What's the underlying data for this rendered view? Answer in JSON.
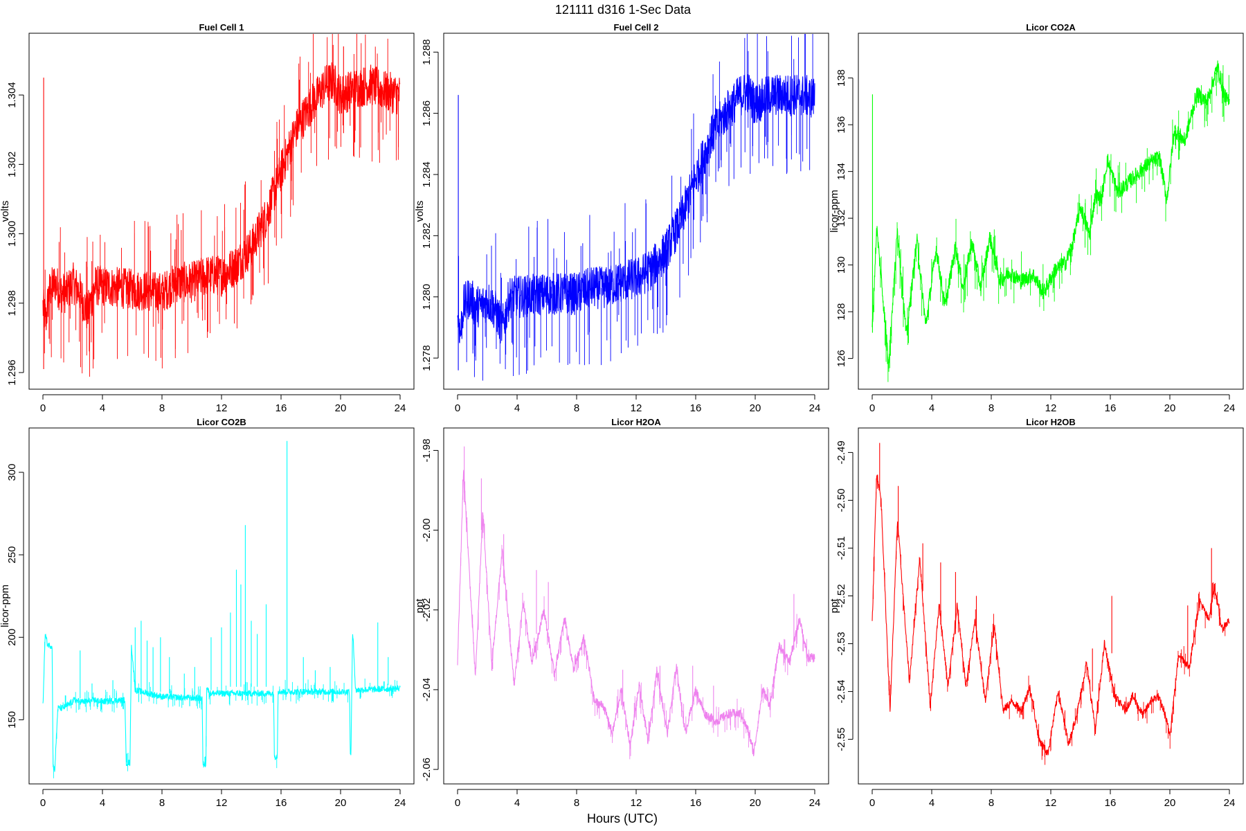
{
  "figure_title": "121111    d316    1-Sec Data",
  "x_axis_label": "Hours (UTC)",
  "chart_data": [
    {
      "type": "line",
      "title": "Fuel Cell 1",
      "ylabel": "volts",
      "color": "#ff0000",
      "xlim": [
        0,
        24
      ],
      "xticks": [
        0,
        4,
        8,
        12,
        16,
        20,
        24
      ],
      "ylim": [
        1.2958,
        1.3055
      ],
      "yticks": [
        1.296,
        1.298,
        1.3,
        1.302,
        1.304
      ],
      "ytick_labels": [
        "1.296",
        "1.298",
        "1.300",
        "1.302",
        "1.304"
      ],
      "baseline": {
        "x": [
          0,
          0.2,
          0.4,
          0.8,
          1.2,
          1.6,
          2.0,
          2.5,
          3.0,
          3.5,
          4,
          6,
          8,
          9,
          10,
          11,
          12,
          13,
          14,
          15,
          16,
          17,
          18,
          19,
          19.5,
          20,
          21,
          22,
          23,
          24
        ],
        "y": [
          1.2979,
          1.2975,
          1.2983,
          1.2986,
          1.2983,
          1.2983,
          1.2986,
          1.2983,
          1.2977,
          1.2985,
          1.2985,
          1.2984,
          1.2983,
          1.2986,
          1.2986,
          1.2988,
          1.2988,
          1.2991,
          1.2996,
          1.3005,
          1.3018,
          1.303,
          1.3037,
          1.3043,
          1.3044,
          1.304,
          1.3042,
          1.3043,
          1.3041,
          1.304
        ]
      },
      "band": 0.0006,
      "spikes": [
        {
          "x": 0.05,
          "y": [
            1.2961,
            1.3045
          ]
        },
        {
          "x": 20.2,
          "y": [
            1.3029,
            1.3054
          ]
        }
      ]
    },
    {
      "type": "line",
      "title": "Fuel Cell 2",
      "ylabel": "volts",
      "color": "#0000ff",
      "xlim": [
        0,
        24
      ],
      "xticks": [
        0,
        4,
        8,
        12,
        16,
        20,
        24
      ],
      "ylim": [
        1.2773,
        1.2883
      ],
      "yticks": [
        1.278,
        1.28,
        1.282,
        1.284,
        1.286,
        1.288
      ],
      "ytick_labels": [
        "1.278",
        "1.280",
        "1.282",
        "1.284",
        "1.286",
        "1.288"
      ],
      "baseline": {
        "x": [
          0,
          0.2,
          0.4,
          0.8,
          1.2,
          1.6,
          2.0,
          2.5,
          3.0,
          3.5,
          4,
          6,
          8,
          9,
          10,
          11,
          12,
          13,
          14,
          15,
          16,
          17,
          18,
          19,
          19.5,
          20,
          21,
          22,
          23,
          24
        ],
        "y": [
          1.2795,
          1.2788,
          1.2797,
          1.28,
          1.2797,
          1.2797,
          1.2799,
          1.2796,
          1.279,
          1.28,
          1.28,
          1.2801,
          1.2801,
          1.2803,
          1.2803,
          1.2805,
          1.2806,
          1.2809,
          1.2815,
          1.2825,
          1.2839,
          1.2852,
          1.286,
          1.2866,
          1.2867,
          1.2863,
          1.2866,
          1.2866,
          1.2866,
          1.2865
        ]
      },
      "band": 0.0007,
      "spikes": [
        {
          "x": 0.05,
          "y": [
            1.2776,
            1.2866
          ]
        }
      ]
    },
    {
      "type": "line",
      "title": "Licor CO2A",
      "ylabel": "licor-ppm",
      "color": "#00ff00",
      "xlim": [
        0,
        24
      ],
      "xticks": [
        0,
        4,
        8,
        12,
        16,
        20,
        24
      ],
      "ylim": [
        125.1,
        139.5
      ],
      "yticks": [
        126,
        128,
        130,
        132,
        134,
        136,
        138
      ],
      "ytick_labels": [
        "126",
        "128",
        "130",
        "132",
        "134",
        "136",
        "138"
      ],
      "baseline": {
        "x": [
          0,
          0.3,
          0.6,
          1.1,
          1.7,
          2.3,
          3.0,
          3.6,
          4.3,
          4.9,
          5.6,
          6.1,
          6.7,
          7.3,
          7.9,
          8.6,
          9.2,
          10.0,
          10.8,
          11.5,
          12.3,
          13.0,
          13.5,
          14.0,
          14.6,
          15.0,
          15.4,
          15.8,
          16.5,
          17.5,
          18.5,
          19.3,
          19.8,
          20.3,
          21.0,
          21.8,
          22.5,
          23.2,
          23.7,
          24.0
        ],
        "y": [
          127.2,
          131.6,
          129.5,
          125.8,
          131.5,
          126.9,
          131.1,
          127.4,
          130.7,
          128.2,
          130.8,
          129.0,
          131.0,
          129.0,
          131.2,
          129.3,
          129.7,
          129.3,
          129.6,
          128.8,
          129.8,
          130.1,
          131.0,
          132.5,
          131.3,
          133.0,
          132.8,
          134.5,
          133.1,
          133.7,
          134.3,
          134.6,
          132.8,
          135.8,
          135.3,
          137.3,
          137.0,
          138.5,
          137.2,
          136.9
        ]
      },
      "band": 0.35,
      "spikes": [
        {
          "x": 0.02,
          "y": [
            127.1,
            137.3
          ]
        }
      ]
    },
    {
      "type": "line",
      "title": "Licor CO2B",
      "ylabel": "licor-ppm",
      "color": "#00ffff",
      "xlim": [
        0,
        24
      ],
      "xticks": [
        0,
        4,
        8,
        12,
        16,
        20,
        24
      ],
      "ylim": [
        117,
        321
      ],
      "yticks": [
        150,
        200,
        250,
        300
      ],
      "ytick_labels": [
        "150",
        "200",
        "250",
        "300"
      ],
      "baseline": {
        "x": [
          0,
          0.15,
          0.3,
          0.45,
          0.62,
          0.68,
          0.8,
          1.0,
          1.3,
          1.7,
          2.1,
          2.5,
          3.0,
          3.5,
          4.0,
          5.5,
          5.6,
          5.72,
          5.85,
          5.95,
          6.2,
          8,
          10.7,
          10.75,
          10.8,
          10.95,
          11.0,
          11.2,
          15.5,
          15.55,
          15.6,
          15.75,
          15.8,
          15.9,
          20.6,
          20.65,
          20.7,
          20.8,
          20.85,
          21,
          24
        ],
        "y": [
          158,
          202,
          196,
          195,
          195,
          122,
          120,
          157,
          157,
          159,
          162,
          161,
          161,
          162,
          161,
          162,
          124,
          124,
          124,
          195,
          168,
          164,
          163,
          123,
          123,
          123,
          170,
          166,
          166,
          128,
          128,
          128,
          168,
          167,
          167,
          130,
          130,
          200,
          200,
          168,
          169
        ]
      },
      "band": 2,
      "spikes": [
        {
          "x": 2.5,
          "y": [
            163,
            192
          ]
        },
        {
          "x": 3.3,
          "y": [
            163,
            172
          ]
        },
        {
          "x": 4.7,
          "y": [
            163,
            174
          ]
        },
        {
          "x": 6.2,
          "y": [
            167,
            206
          ]
        },
        {
          "x": 6.6,
          "y": [
            168,
            210
          ]
        },
        {
          "x": 7.0,
          "y": [
            167,
            198
          ]
        },
        {
          "x": 7.4,
          "y": [
            167,
            194
          ]
        },
        {
          "x": 7.9,
          "y": [
            167,
            200
          ]
        },
        {
          "x": 8.5,
          "y": [
            166,
            188
          ]
        },
        {
          "x": 9.5,
          "y": [
            165,
            178
          ]
        },
        {
          "x": 10.2,
          "y": [
            165,
            182
          ]
        },
        {
          "x": 11.3,
          "y": [
            168,
            200
          ]
        },
        {
          "x": 12.0,
          "y": [
            168,
            206
          ]
        },
        {
          "x": 12.6,
          "y": [
            170,
            215
          ]
        },
        {
          "x": 13.0,
          "y": [
            170,
            241
          ]
        },
        {
          "x": 13.3,
          "y": [
            170,
            232
          ]
        },
        {
          "x": 13.6,
          "y": [
            168,
            268
          ]
        },
        {
          "x": 14.0,
          "y": [
            170,
            210
          ]
        },
        {
          "x": 14.4,
          "y": [
            170,
            202
          ]
        },
        {
          "x": 15.0,
          "y": [
            170,
            220
          ]
        },
        {
          "x": 16.4,
          "y": [
            168,
            319
          ]
        },
        {
          "x": 17.5,
          "y": [
            167,
            188
          ]
        },
        {
          "x": 18.3,
          "y": [
            167,
            180
          ]
        },
        {
          "x": 19.3,
          "y": [
            166,
            182
          ]
        },
        {
          "x": 22.5,
          "y": [
            170,
            209
          ]
        },
        {
          "x": 23.2,
          "y": [
            171,
            188
          ]
        }
      ]
    },
    {
      "type": "line",
      "title": "Licor H2OA",
      "ylabel": "ppt",
      "color": "#ee82ee",
      "xlim": [
        0,
        24
      ],
      "xticks": [
        0,
        4,
        8,
        12,
        16,
        20,
        24
      ],
      "ylim": [
        -2.0612,
        -1.9768
      ],
      "yticks": [
        -2.06,
        -2.04,
        -2.02,
        -2.0,
        -1.98
      ],
      "ytick_labels": [
        "-2.06",
        "-2.04",
        "-2.02",
        "-2.00",
        "-1.98"
      ],
      "baseline": {
        "x": [
          0,
          0.4,
          1.2,
          1.7,
          2.3,
          3.0,
          3.8,
          4.4,
          5.0,
          5.8,
          6.5,
          7.2,
          7.8,
          8.5,
          9.2,
          9.8,
          10.4,
          11.0,
          11.6,
          12.2,
          12.8,
          13.4,
          14.1,
          14.7,
          15.3,
          16.0,
          16.6,
          17.4,
          18.2,
          19.0,
          19.5,
          19.9,
          20.5,
          21.0,
          21.6,
          22.3,
          23.0,
          23.5,
          24.0
        ],
        "y": [
          -2.033,
          -1.985,
          -2.037,
          -1.995,
          -2.034,
          -2.005,
          -2.039,
          -2.018,
          -2.033,
          -2.02,
          -2.036,
          -2.022,
          -2.035,
          -2.027,
          -2.043,
          -2.044,
          -2.051,
          -2.04,
          -2.054,
          -2.039,
          -2.053,
          -2.035,
          -2.051,
          -2.034,
          -2.051,
          -2.04,
          -2.046,
          -2.048,
          -2.046,
          -2.046,
          -2.05,
          -2.056,
          -2.04,
          -2.044,
          -2.029,
          -2.033,
          -2.022,
          -2.032,
          -2.032
        ]
      },
      "band": 0.0012,
      "spikes": [
        {
          "x": 0.45,
          "y": [
            -1.993,
            -1.979
          ]
        },
        {
          "x": 1.6,
          "y": [
            -2.0,
            -1.987
          ]
        },
        {
          "x": 3.1,
          "y": [
            -2.012,
            -2.001
          ]
        },
        {
          "x": 5.3,
          "y": [
            -2.026,
            -2.01
          ]
        },
        {
          "x": 6.1,
          "y": [
            -2.025,
            -2.013
          ]
        },
        {
          "x": 11.1,
          "y": [
            -2.045,
            -2.035
          ]
        },
        {
          "x": 13.6,
          "y": [
            -2.043,
            -2.034
          ]
        },
        {
          "x": 15.8,
          "y": [
            -2.044,
            -2.034
          ]
        },
        {
          "x": 17.2,
          "y": [
            -2.049,
            -2.039
          ]
        },
        {
          "x": 22.6,
          "y": [
            -2.03,
            -2.016
          ]
        }
      ]
    },
    {
      "type": "line",
      "title": "Licor H2OB",
      "ylabel": "ppt",
      "color": "#ff0000",
      "xlim": [
        0,
        24
      ],
      "xticks": [
        0,
        4,
        8,
        12,
        16,
        20,
        24
      ],
      "ylim": [
        -2.5573,
        -2.4869
      ],
      "yticks": [
        -2.55,
        -2.54,
        -2.53,
        -2.52,
        -2.51,
        -2.5,
        -2.49
      ],
      "ytick_labels": [
        "-2.55",
        "-2.54",
        "-2.53",
        "-2.52",
        "-2.51",
        "-2.50",
        "-2.49"
      ],
      "baseline": {
        "x": [
          0,
          0.3,
          0.6,
          1.2,
          1.7,
          2.5,
          3.2,
          3.9,
          4.5,
          5.1,
          5.7,
          6.3,
          6.9,
          7.6,
          8.2,
          8.8,
          9.4,
          10.0,
          10.6,
          11.2,
          11.8,
          12.5,
          13.2,
          13.8,
          14.4,
          15.0,
          15.6,
          16.3,
          17.0,
          17.5,
          18.2,
          18.7,
          19.2,
          19.6,
          20.0,
          20.6,
          21.3,
          22.0,
          22.6,
          23.0,
          23.5,
          24.0
        ],
        "y": [
          -2.526,
          -2.494,
          -2.5,
          -2.544,
          -2.504,
          -2.538,
          -2.512,
          -2.543,
          -2.522,
          -2.539,
          -2.522,
          -2.539,
          -2.525,
          -2.542,
          -2.526,
          -2.544,
          -2.542,
          -2.544,
          -2.539,
          -2.55,
          -2.553,
          -2.54,
          -2.551,
          -2.544,
          -2.534,
          -2.548,
          -2.53,
          -2.541,
          -2.544,
          -2.541,
          -2.545,
          -2.542,
          -2.541,
          -2.544,
          -2.549,
          -2.532,
          -2.535,
          -2.521,
          -2.525,
          -2.518,
          -2.527,
          -2.525
        ]
      },
      "band": 0.0009,
      "spikes": [
        {
          "x": 0.5,
          "y": [
            -2.498,
            -2.488
          ]
        },
        {
          "x": 1.75,
          "y": [
            -2.507,
            -2.497
          ]
        },
        {
          "x": 3.4,
          "y": [
            -2.519,
            -2.509
          ]
        },
        {
          "x": 4.6,
          "y": [
            -2.526,
            -2.513
          ]
        },
        {
          "x": 5.6,
          "y": [
            -2.528,
            -2.515
          ]
        },
        {
          "x": 7.0,
          "y": [
            -2.53,
            -2.52
          ]
        },
        {
          "x": 14.8,
          "y": [
            -2.54,
            -2.531
          ]
        },
        {
          "x": 16.1,
          "y": [
            -2.532,
            -2.52
          ]
        },
        {
          "x": 21.2,
          "y": [
            -2.535,
            -2.522
          ]
        },
        {
          "x": 22.8,
          "y": [
            -2.524,
            -2.51
          ]
        }
      ]
    }
  ]
}
